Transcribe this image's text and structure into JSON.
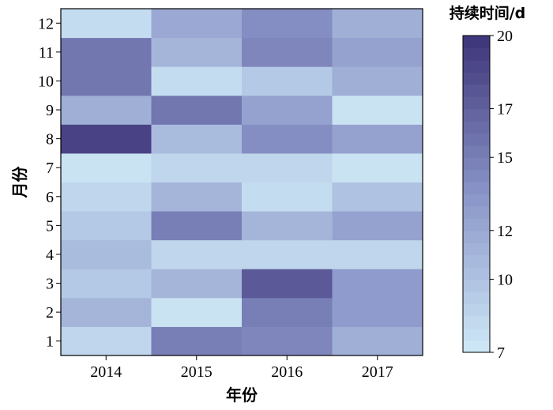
{
  "chart_data": {
    "type": "heatmap",
    "xlabel": "年份",
    "ylabel": "月份",
    "x_categories": [
      "2014",
      "2015",
      "2016",
      "2017"
    ],
    "y_categories": [
      "1",
      "2",
      "3",
      "4",
      "5",
      "6",
      "7",
      "8",
      "9",
      "10",
      "11",
      "12"
    ],
    "values": [
      [
        8.5,
        15.0,
        14.5,
        11.5
      ],
      [
        11.0,
        7.5,
        15.0,
        13.0
      ],
      [
        9.5,
        11.0,
        17.5,
        13.0
      ],
      [
        10.5,
        8.5,
        8.5,
        8.5
      ],
      [
        9.5,
        15.0,
        11.0,
        12.5
      ],
      [
        8.5,
        11.0,
        8.0,
        10.0
      ],
      [
        7.5,
        8.5,
        8.5,
        7.5
      ],
      [
        19.0,
        10.5,
        14.0,
        12.5
      ],
      [
        11.5,
        15.5,
        12.5,
        7.5
      ],
      [
        15.5,
        8.0,
        9.5,
        11.5
      ],
      [
        15.5,
        11.0,
        14.5,
        12.5
      ],
      [
        8.0,
        12.0,
        14.0,
        11.5
      ]
    ],
    "colorbar": {
      "title": "持续时间/d",
      "min": 7,
      "max": 20,
      "ticks": [
        7,
        10,
        12,
        15,
        17,
        20
      ],
      "color_low": "#cfe9f7",
      "color_high": "#3d3479"
    }
  }
}
